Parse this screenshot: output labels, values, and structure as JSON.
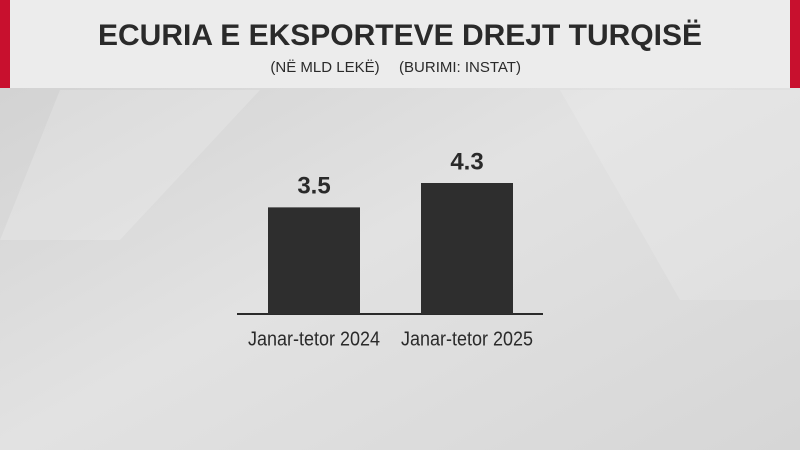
{
  "chart_data": {
    "type": "bar",
    "title": "ECURIA E EKSPORTEVE DREJT TURQISË",
    "subtitle": "(NË MLD LEKË)",
    "source": "(BURIMI: INSTAT)",
    "categories": [
      "Janar-tetor 2024",
      "Janar-tetor 2025"
    ],
    "values": [
      3.5,
      4.3
    ],
    "color": "#2e2e2e"
  }
}
